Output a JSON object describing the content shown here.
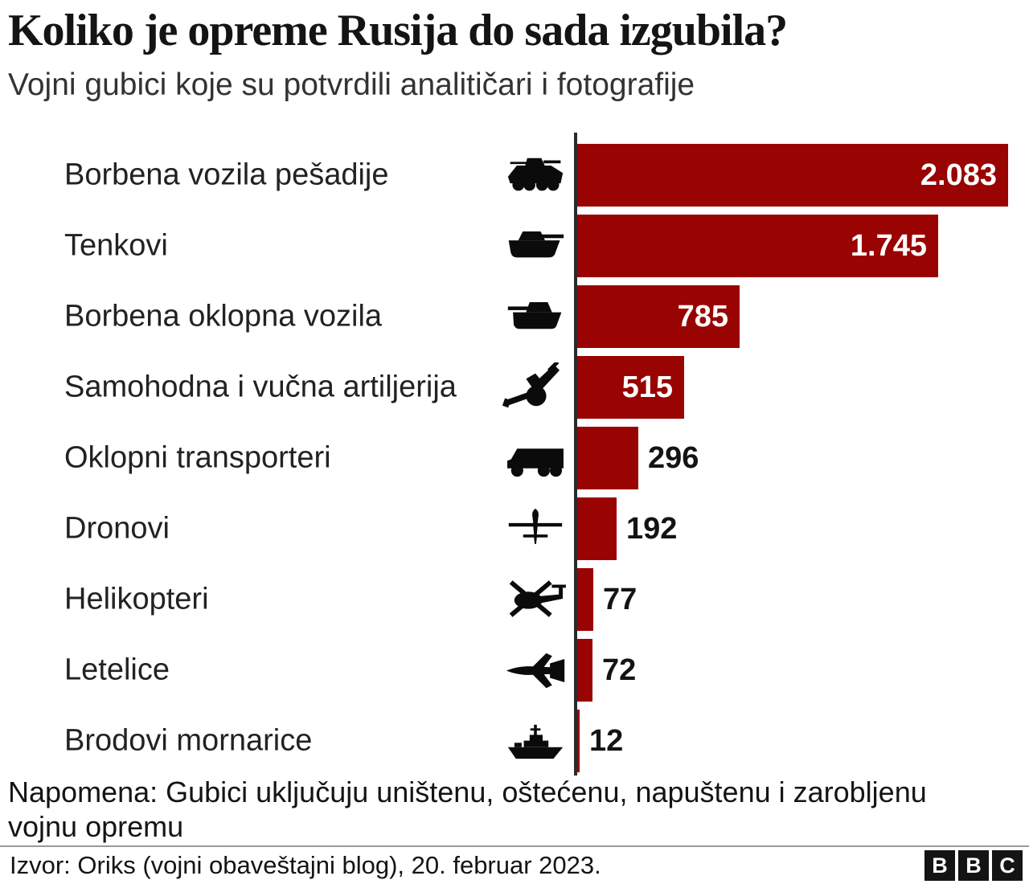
{
  "header": {
    "title": "Koliko je opreme Rusija do sada izgubila?",
    "subtitle": "Vojni gubici koje su potvrdili analitičari i fotografije"
  },
  "chart_data": {
    "type": "bar",
    "orientation": "horizontal",
    "title": "Koliko je opreme Rusija do sada izgubila?",
    "subtitle": "Vojni gubici koje su potvrdili analitičari i fotografije",
    "categories": [
      "Borbena vozila pešadije",
      "Tenkovi",
      "Borbena oklopna vozila",
      "Samohodna i vučna artiljerija",
      "Oklopni transporteri",
      "Dronovi",
      "Helikopteri",
      "Letelice",
      "Brodovi mornarice"
    ],
    "values": [
      2083,
      1745,
      785,
      515,
      296,
      192,
      77,
      72,
      12
    ],
    "value_labels": [
      "2.083",
      "1.745",
      "785",
      "515",
      "296",
      "192",
      "77",
      "72",
      "12"
    ],
    "icons": [
      "ifv-icon",
      "tank-icon",
      "armored-vehicle-icon",
      "artillery-icon",
      "apc-truck-icon",
      "drone-icon",
      "helicopter-icon",
      "jet-icon",
      "ship-icon"
    ],
    "bar_color": "#990302",
    "axis_color": "#2b2b2b",
    "xlim": [
      0,
      2083
    ],
    "grid": false,
    "legend": "none"
  },
  "note": {
    "line1": "Napomena: Gubici uključuju uništenu, oštećenu, napuštenu i zarobljenu",
    "line2": "vojnu opremu"
  },
  "footer": {
    "source": "Izvor: Oriks (vojni obaveštajni blog), 20. februar 2023.",
    "logo_letters": [
      "B",
      "B",
      "C"
    ]
  }
}
